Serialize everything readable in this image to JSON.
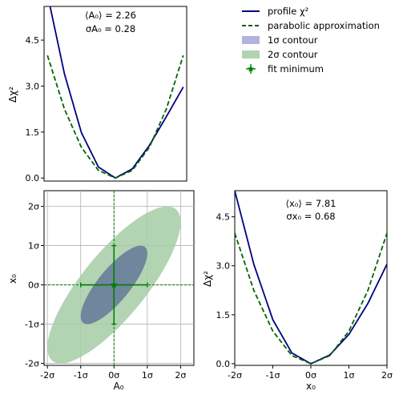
{
  "chart_data": [
    {
      "type": "line",
      "panel": "top-left",
      "xlabel": "",
      "ylabel": "Δχ²",
      "xlim": [
        -2.1,
        2.1
      ],
      "ylim": [
        -0.1,
        5.6
      ],
      "yticks": [
        0.0,
        1.5,
        3.0,
        4.5
      ],
      "ytick_labels": [
        "0.0",
        "1.5",
        "3.0",
        "4.5"
      ],
      "annotation": {
        "line1": "⟨A₀⟩ = 2.26",
        "line2": "σA₀ = 0.28"
      },
      "series": [
        {
          "name": "profile χ²",
          "color": "#000080",
          "style": "solid",
          "x": [
            -2.0,
            -1.5,
            -1.0,
            -0.5,
            0.0,
            0.5,
            1.0,
            1.5,
            2.0
          ],
          "y": [
            6.0,
            3.4,
            1.48,
            0.36,
            0.0,
            0.3,
            1.06,
            2.0,
            2.97
          ]
        },
        {
          "name": "parabolic approximation",
          "color": "#006400",
          "style": "dashed",
          "x": [
            -2.0,
            -1.5,
            -1.0,
            -0.5,
            0.0,
            0.5,
            1.0,
            1.5,
            2.0
          ],
          "y": [
            4.0,
            2.25,
            1.0,
            0.25,
            0.0,
            0.25,
            1.0,
            2.25,
            4.0
          ]
        }
      ]
    },
    {
      "type": "contour",
      "panel": "bottom-left",
      "xlabel": "A₀",
      "ylabel": "x₀",
      "xlim": [
        -2.1,
        2.4
      ],
      "ylim": [
        -2.05,
        2.4
      ],
      "xtick_labels": [
        "-2σ",
        "-1σ",
        "0σ",
        "1σ",
        "2σ"
      ],
      "ytick_labels": [
        "-2σ",
        "-1σ",
        "0σ",
        "1σ",
        "2σ"
      ],
      "ticks": [
        -2,
        -1,
        0,
        1,
        2
      ],
      "grid": true,
      "correlation": 0.8,
      "contours": [
        {
          "name": "1σ contour",
          "color": "#8080c0",
          "level": 1
        },
        {
          "name": "2σ contour",
          "color": "#80b880",
          "level": 2
        }
      ],
      "fit_minimum": {
        "name": "fit minimum",
        "x": 0,
        "y": 0,
        "xerr": 1,
        "yerr": 1,
        "color": "#008000"
      }
    },
    {
      "type": "line",
      "panel": "bottom-right",
      "xlabel": "x₀",
      "ylabel": "Δχ²",
      "xlim": [
        -2.0,
        2.0
      ],
      "ylim": [
        -0.05,
        5.3
      ],
      "yticks": [
        0.0,
        1.5,
        3.0,
        4.5
      ],
      "ytick_labels": [
        "0.0",
        "1.5",
        "3.0",
        "4.5"
      ],
      "xtick_labels": [
        "-2σ",
        "-1σ",
        "0σ",
        "1σ",
        "2σ"
      ],
      "annotation": {
        "line1": "⟨x₀⟩ = 7.81",
        "line2": "σx₀ = 0.68"
      },
      "series": [
        {
          "name": "profile χ²",
          "color": "#000080",
          "style": "solid",
          "x": [
            -2.0,
            -1.5,
            -1.0,
            -0.5,
            0.0,
            0.5,
            1.0,
            1.5,
            2.0
          ],
          "y": [
            5.3,
            3.05,
            1.35,
            0.33,
            0.0,
            0.27,
            0.9,
            1.85,
            3.05
          ]
        },
        {
          "name": "parabolic approximation",
          "color": "#006400",
          "style": "dashed",
          "x": [
            -2.0,
            -1.5,
            -1.0,
            -0.5,
            0.0,
            0.5,
            1.0,
            1.5,
            2.0
          ],
          "y": [
            4.0,
            2.25,
            1.0,
            0.25,
            0.0,
            0.25,
            1.0,
            2.25,
            4.0
          ]
        }
      ]
    }
  ],
  "legend": {
    "placement": "top-right",
    "items": [
      {
        "label": "profile χ²",
        "kind": "line",
        "color": "#000080"
      },
      {
        "label": "parabolic approximation",
        "kind": "dashed",
        "color": "#006400"
      },
      {
        "label": "1σ contour",
        "kind": "patch",
        "color": "#b3b3dd"
      },
      {
        "label": "2σ contour",
        "kind": "patch",
        "color": "#b0d4b0"
      },
      {
        "label": "fit minimum",
        "kind": "marker",
        "color": "#008000"
      }
    ]
  }
}
